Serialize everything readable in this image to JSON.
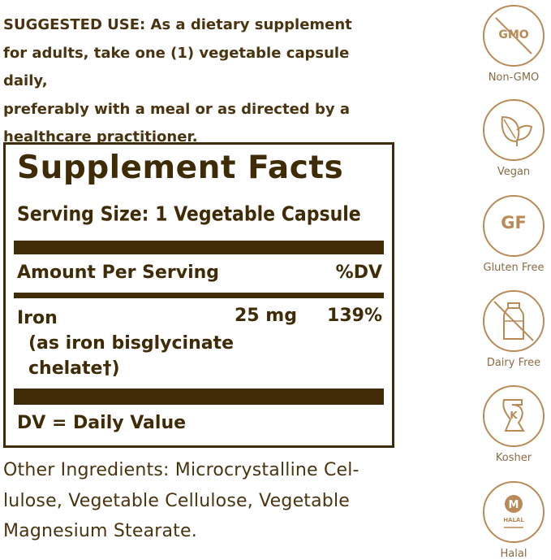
{
  "usage": {
    "heading": "SUGGESTED USE:",
    "line1": " As a dietary supplement",
    "line2": "for adults, take one (1) vegetable capsule daily,",
    "line3": "preferably with a meal or as directed by a",
    "line4": "healthcare practitioner."
  },
  "facts": {
    "title": "Supplement Facts",
    "serving_size": "Serving Size: 1 Vegetable Capsule",
    "amount_header": "Amount Per Serving",
    "dv_header": "%DV",
    "nutrient": {
      "name": "Iron",
      "detail_line1": "(as iron bisglycinate",
      "detail_line2": "chelate†)",
      "amount": "25 mg",
      "dv": "139%"
    },
    "dv_note": "DV = Daily Value"
  },
  "other_ingredients": {
    "line1": "Other Ingredients: Microcrystalline Cel-",
    "line2": "lulose, Vegetable Cellulose, Vegetable",
    "line3": "Magnesium Stearate."
  },
  "badges": [
    {
      "icon": "non-gmo-icon",
      "symbol": "GMO",
      "label": "Non-GMO"
    },
    {
      "icon": "vegan-leaf-icon",
      "label": "Vegan"
    },
    {
      "icon": "gluten-free-icon",
      "symbol": "GF",
      "label": "Gluten Free"
    },
    {
      "icon": "dairy-free-milk-icon",
      "label": "Dairy Free"
    },
    {
      "icon": "kosher-icon",
      "symbol": "K",
      "label": "Kosher"
    },
    {
      "icon": "halal-icon",
      "symbol": "M",
      "seal_text": "HALAL",
      "label": "Halal"
    }
  ],
  "colors": {
    "text": "#4a3410",
    "panel": "#3f2c06",
    "badge": "#b98a56",
    "badge_label": "#8a6a44"
  }
}
